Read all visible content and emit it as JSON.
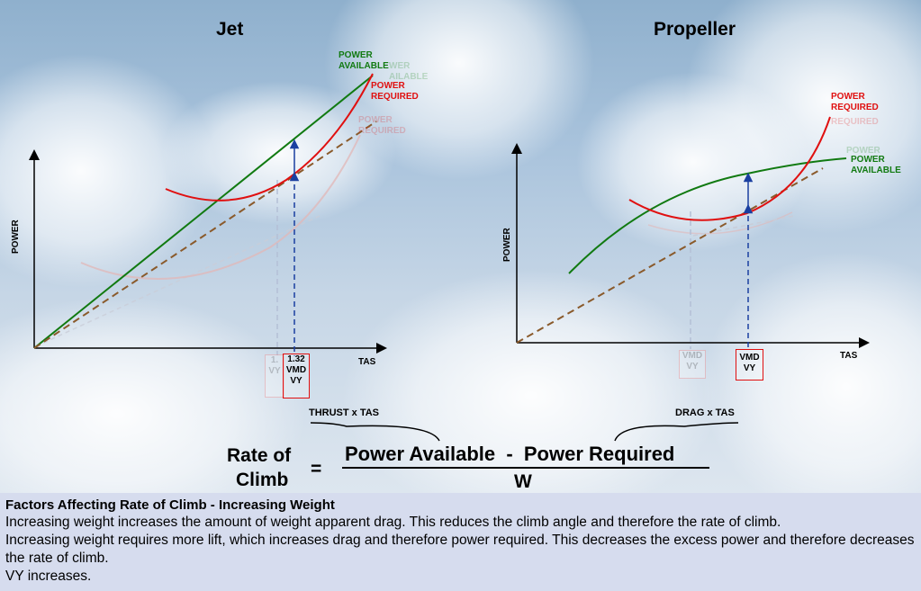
{
  "jet": {
    "title": "Jet",
    "power_available": "POWER\nAVAILABLE",
    "power_required": "POWER\nREQUIRED",
    "faded_available": "WER\nAILABLE",
    "faded_required": "POWER\nREQUIRED",
    "y_axis": "POWER",
    "x_axis": "TAS",
    "ratio_label": "1.32",
    "faded_ratio": "1.",
    "vmd": "VMD",
    "vy": "VY",
    "faded_vy": "VY"
  },
  "prop": {
    "title": "Propeller",
    "power_required": "POWER\nREQUIRED",
    "faded_required": "REQUIRED",
    "power_available": "POWER\nAVAILABLE",
    "faded_available": "POWER",
    "y_axis": "POWER",
    "x_axis": "TAS",
    "vmd": "VMD",
    "vy": "VY",
    "faded_vmd": "VMD",
    "faded_vy": "VY"
  },
  "formula": {
    "thrust_note": "THRUST x TAS",
    "drag_note": "DRAG x TAS",
    "lhs_line1": "Rate of",
    "lhs_line2": "Climb",
    "equals": "=",
    "numerator": "Power Available  -  Power Required",
    "denominator": "W"
  },
  "text": {
    "heading": "Factors Affecting Rate of Climb - Increasing Weight",
    "p1": "Increasing weight increases the amount of weight apparent drag. This reduces the climb angle and therefore the rate of climb.",
    "p2": "Increasing weight requires more lift, which increases drag and therefore power required. This decreases the excess power and therefore decreases the rate of climb.",
    "p3": "VY increases."
  },
  "colors": {
    "available": "#117a11",
    "required": "#e01010",
    "arrow": "#1a3fa0",
    "dashed_brown": "#8a5a2b"
  }
}
